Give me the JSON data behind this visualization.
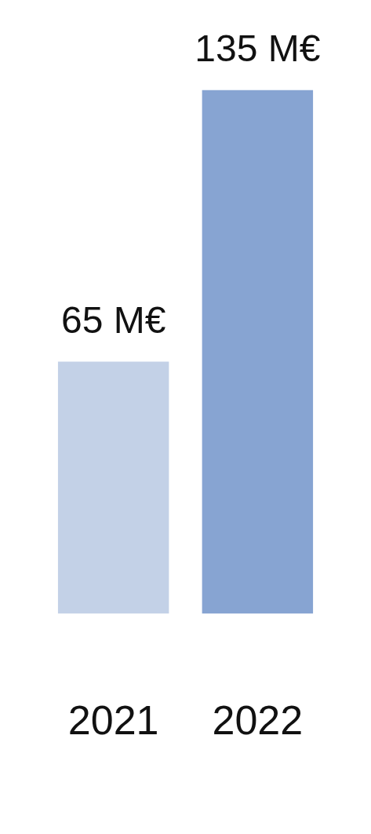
{
  "chart_data": {
    "type": "bar",
    "categories": [
      "2021",
      "2022"
    ],
    "values": [
      65,
      135
    ],
    "colors": [
      "#c3d1e7",
      "#87a4d2"
    ],
    "value_labels": [
      "65 M€",
      "135 M€"
    ]
  }
}
